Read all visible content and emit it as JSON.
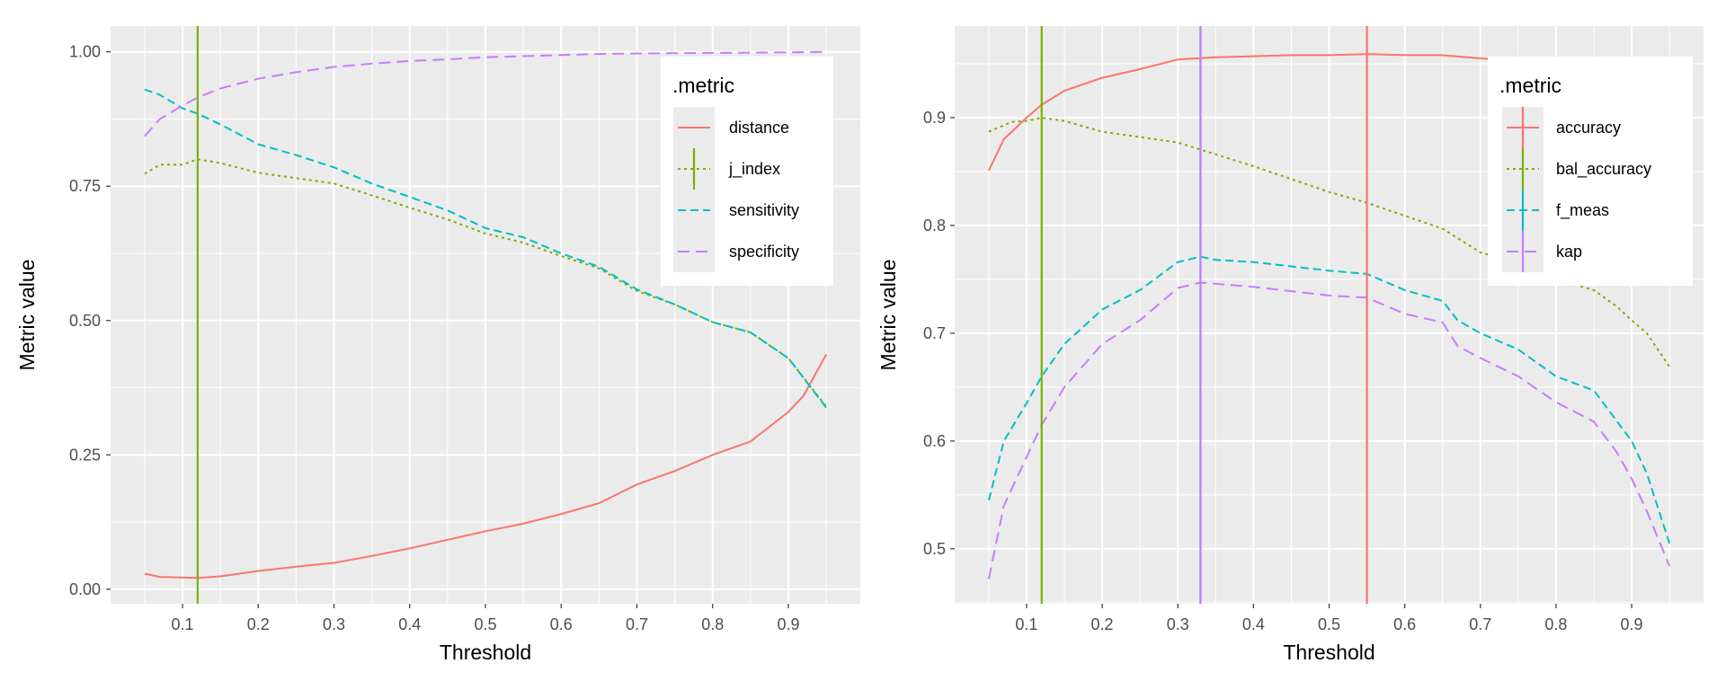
{
  "chart_data": [
    {
      "type": "line",
      "xlabel": "Threshold",
      "ylabel": "Metric value",
      "xlim": [
        0.005,
        0.995
      ],
      "ylim": [
        -0.027,
        1.048
      ],
      "xticks": [
        0.1,
        0.2,
        0.3,
        0.4,
        0.5,
        0.6,
        0.7,
        0.8,
        0.9
      ],
      "xtick_labels": [
        "0.1",
        "0.2",
        "0.3",
        "0.4",
        "0.5",
        "0.6",
        "0.7",
        "0.8",
        "0.9"
      ],
      "yticks": [
        0,
        0.25,
        0.5,
        0.75,
        1.0
      ],
      "ytick_labels": [
        "0.00",
        "0.25",
        "0.50",
        "0.75",
        "1.00"
      ],
      "grid": true,
      "legend": {
        "title": ".metric",
        "placement": "top-right"
      },
      "series": [
        {
          "name": "distance",
          "color": "#F8766D",
          "linetype": "solid",
          "vline": null,
          "x": [
            0.05,
            0.07,
            0.1,
            0.12,
            0.15,
            0.2,
            0.25,
            0.3,
            0.35,
            0.4,
            0.45,
            0.5,
            0.55,
            0.6,
            0.65,
            0.7,
            0.75,
            0.8,
            0.85,
            0.9,
            0.92,
            0.95
          ],
          "y": [
            0.029,
            0.023,
            0.022,
            0.021,
            0.024,
            0.034,
            0.042,
            0.049,
            0.062,
            0.076,
            0.092,
            0.108,
            0.122,
            0.14,
            0.16,
            0.195,
            0.22,
            0.25,
            0.275,
            0.33,
            0.36,
            0.437
          ]
        },
        {
          "name": "j_index",
          "color": "#7CAE00",
          "linetype": "dotted",
          "vline": 0.12,
          "x": [
            0.05,
            0.07,
            0.1,
            0.12,
            0.15,
            0.2,
            0.25,
            0.3,
            0.35,
            0.4,
            0.45,
            0.5,
            0.55,
            0.6,
            0.65,
            0.7,
            0.75,
            0.8,
            0.85,
            0.9,
            0.95
          ],
          "y": [
            0.773,
            0.79,
            0.79,
            0.8,
            0.793,
            0.775,
            0.765,
            0.755,
            0.733,
            0.71,
            0.688,
            0.662,
            0.645,
            0.62,
            0.597,
            0.555,
            0.53,
            0.497,
            0.478,
            0.43,
            0.34
          ]
        },
        {
          "name": "sensitivity",
          "color": "#00BFC4",
          "linetype": "dashed",
          "vline": null,
          "x": [
            0.05,
            0.07,
            0.1,
            0.12,
            0.15,
            0.2,
            0.25,
            0.3,
            0.35,
            0.4,
            0.45,
            0.5,
            0.55,
            0.6,
            0.65,
            0.7,
            0.75,
            0.8,
            0.85,
            0.9,
            0.95
          ],
          "y": [
            0.93,
            0.92,
            0.895,
            0.885,
            0.865,
            0.828,
            0.808,
            0.785,
            0.755,
            0.73,
            0.705,
            0.672,
            0.655,
            0.625,
            0.6,
            0.558,
            0.53,
            0.497,
            0.478,
            0.43,
            0.338
          ]
        },
        {
          "name": "specificity",
          "color": "#C77CFF",
          "linetype": "longdash",
          "vline": null,
          "x": [
            0.05,
            0.07,
            0.1,
            0.12,
            0.15,
            0.2,
            0.25,
            0.3,
            0.35,
            0.4,
            0.45,
            0.5,
            0.55,
            0.6,
            0.65,
            0.7,
            0.8,
            0.9,
            0.95
          ],
          "y": [
            0.843,
            0.875,
            0.9,
            0.915,
            0.932,
            0.95,
            0.962,
            0.972,
            0.978,
            0.983,
            0.986,
            0.99,
            0.992,
            0.994,
            0.996,
            0.997,
            0.998,
            0.999,
            1.0
          ]
        }
      ]
    },
    {
      "type": "line",
      "xlabel": "Threshold",
      "ylabel": "Metric value",
      "xlim": [
        0.005,
        0.995
      ],
      "ylim": [
        0.449,
        0.985
      ],
      "xticks": [
        0.1,
        0.2,
        0.3,
        0.4,
        0.5,
        0.6,
        0.7,
        0.8,
        0.9
      ],
      "xtick_labels": [
        "0.1",
        "0.2",
        "0.3",
        "0.4",
        "0.5",
        "0.6",
        "0.7",
        "0.8",
        "0.9"
      ],
      "yticks": [
        0.5,
        0.6,
        0.7,
        0.8,
        0.9
      ],
      "ytick_labels": [
        "0.5",
        "0.6",
        "0.7",
        "0.8",
        "0.9"
      ],
      "grid": true,
      "legend": {
        "title": ".metric",
        "placement": "top-right"
      },
      "series": [
        {
          "name": "accuracy",
          "color": "#F8766D",
          "linetype": "solid",
          "vline": 0.55,
          "x": [
            0.05,
            0.07,
            0.1,
            0.12,
            0.15,
            0.2,
            0.25,
            0.3,
            0.35,
            0.4,
            0.45,
            0.5,
            0.55,
            0.6,
            0.65,
            0.7,
            0.75,
            0.8,
            0.85,
            0.9,
            0.95
          ],
          "y": [
            0.851,
            0.88,
            0.9,
            0.912,
            0.925,
            0.937,
            0.945,
            0.954,
            0.956,
            0.957,
            0.958,
            0.958,
            0.959,
            0.958,
            0.958,
            0.955,
            0.953,
            0.951,
            0.948,
            0.944,
            0.94
          ]
        },
        {
          "name": "bal_accuracy",
          "color": "#7CAE00",
          "linetype": "dotted",
          "vline": 0.12,
          "x": [
            0.05,
            0.08,
            0.1,
            0.12,
            0.15,
            0.2,
            0.25,
            0.3,
            0.35,
            0.4,
            0.45,
            0.5,
            0.55,
            0.6,
            0.65,
            0.7,
            0.75,
            0.8,
            0.85,
            0.88,
            0.9,
            0.92,
            0.95
          ],
          "y": [
            0.887,
            0.896,
            0.897,
            0.9,
            0.897,
            0.887,
            0.882,
            0.877,
            0.866,
            0.855,
            0.843,
            0.831,
            0.821,
            0.809,
            0.797,
            0.775,
            0.765,
            0.75,
            0.74,
            0.725,
            0.712,
            0.7,
            0.669
          ]
        },
        {
          "name": "f_meas",
          "color": "#00BFC4",
          "linetype": "dashed",
          "vline": 0.33,
          "x": [
            0.05,
            0.07,
            0.1,
            0.12,
            0.15,
            0.2,
            0.25,
            0.3,
            0.33,
            0.35,
            0.4,
            0.45,
            0.5,
            0.55,
            0.6,
            0.65,
            0.67,
            0.7,
            0.75,
            0.8,
            0.85,
            0.9,
            0.92,
            0.95
          ],
          "y": [
            0.545,
            0.6,
            0.635,
            0.66,
            0.69,
            0.722,
            0.74,
            0.766,
            0.771,
            0.768,
            0.766,
            0.762,
            0.758,
            0.755,
            0.74,
            0.73,
            0.712,
            0.7,
            0.685,
            0.66,
            0.647,
            0.6,
            0.57,
            0.505
          ]
        },
        {
          "name": "kap",
          "color": "#C77CFF",
          "linetype": "longdash",
          "vline": 0.33,
          "x": [
            0.05,
            0.07,
            0.1,
            0.12,
            0.15,
            0.2,
            0.25,
            0.3,
            0.33,
            0.4,
            0.45,
            0.5,
            0.55,
            0.6,
            0.65,
            0.67,
            0.7,
            0.75,
            0.8,
            0.85,
            0.88,
            0.9,
            0.92,
            0.95
          ],
          "y": [
            0.472,
            0.54,
            0.585,
            0.615,
            0.65,
            0.69,
            0.712,
            0.742,
            0.747,
            0.743,
            0.739,
            0.735,
            0.733,
            0.718,
            0.71,
            0.688,
            0.677,
            0.66,
            0.636,
            0.618,
            0.59,
            0.565,
            0.535,
            0.484
          ]
        }
      ]
    }
  ]
}
